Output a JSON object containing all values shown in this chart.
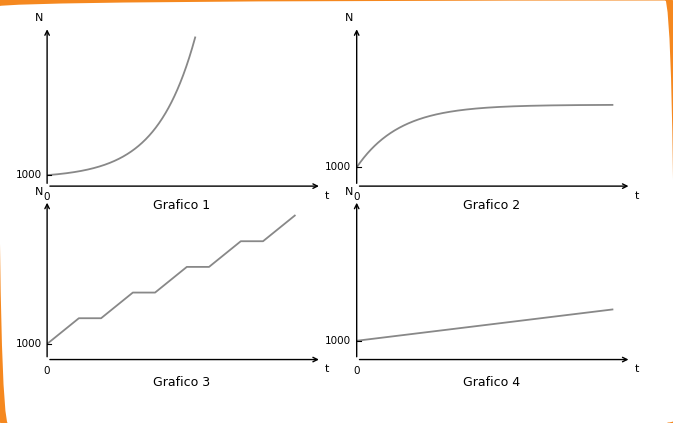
{
  "border_color": "#F5881F",
  "border_linewidth": 5,
  "background_outer": "#FFFFFF",
  "background_inner": "#FFFFFF",
  "line_color": "#888888",
  "axis_color": "#000000",
  "label_color": "#000000",
  "grafico_labels": [
    "Grafico 1",
    "Grafico 2",
    "Grafico 3",
    "Grafico 4"
  ],
  "axis_N": "N",
  "axis_t": "t",
  "label_fontsize": 8,
  "title_fontsize": 9,
  "tick_fontsize": 7.5
}
